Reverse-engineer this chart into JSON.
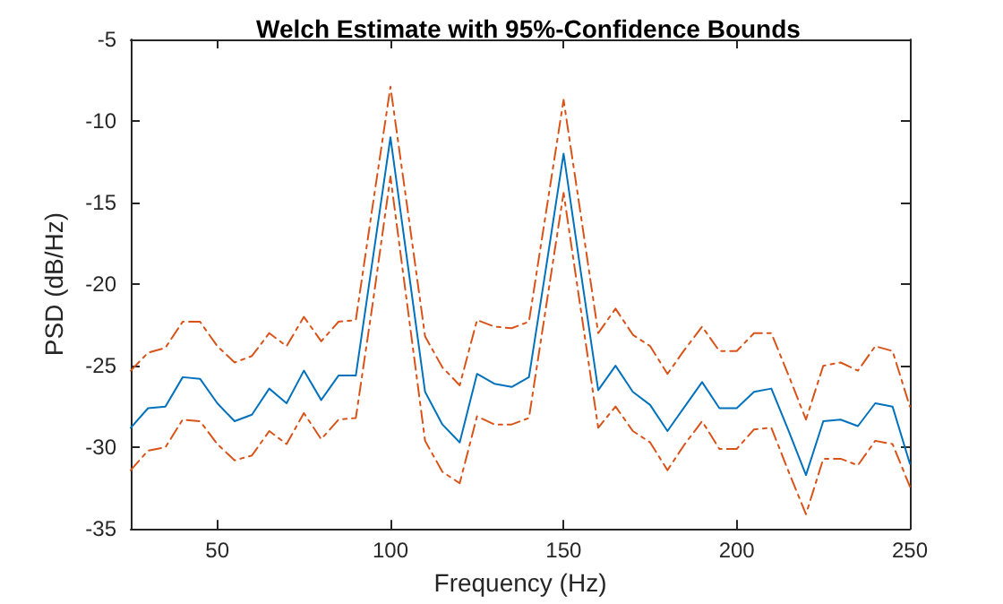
{
  "chart_data": {
    "type": "line",
    "title": "Welch Estimate with 95%-Confidence Bounds",
    "xlabel": "Frequency (Hz)",
    "ylabel": "PSD (dB/Hz)",
    "x": [
      25,
      30,
      35,
      40,
      45,
      50,
      55,
      60,
      65,
      70,
      75,
      80,
      85,
      90,
      95,
      100,
      105,
      110,
      115,
      120,
      125,
      130,
      135,
      140,
      145,
      150,
      155,
      160,
      165,
      170,
      175,
      180,
      185,
      190,
      195,
      200,
      205,
      210,
      215,
      220,
      225,
      230,
      235,
      240,
      245,
      250
    ],
    "series": [
      {
        "color": "#0072bd",
        "line_style": "solid",
        "values": [
          -28.8,
          -27.6,
          -27.5,
          -25.7,
          -25.8,
          -27.3,
          -28.4,
          -28.0,
          -26.4,
          -27.3,
          -25.3,
          -27.1,
          -25.6,
          -25.6,
          -18.3,
          -11.0,
          -18.8,
          -26.6,
          -28.6,
          -29.7,
          -25.5,
          -26.1,
          -26.3,
          -25.7,
          -18.9,
          -12.0,
          -19.3,
          -26.5,
          -25.0,
          -26.6,
          -27.4,
          -29.0,
          -27.5,
          -26.0,
          -27.6,
          -27.6,
          -26.6,
          -26.4,
          -29.0,
          -31.7,
          -28.4,
          -28.3,
          -28.7,
          -27.3,
          -27.5,
          -31.0
        ]
      },
      {
        "color": "#d95319",
        "line_style": "dashed",
        "values": [
          -25.3,
          -24.2,
          -23.9,
          -22.3,
          -22.3,
          -23.8,
          -24.8,
          -24.4,
          -23.0,
          -23.8,
          -22.0,
          -23.5,
          -22.3,
          -22.2,
          -15.0,
          -7.9,
          -15.5,
          -23.2,
          -25.1,
          -26.2,
          -22.2,
          -22.6,
          -22.7,
          -22.3,
          -15.5,
          -8.7,
          -15.8,
          -23.0,
          -21.5,
          -23.1,
          -23.8,
          -25.5,
          -24.0,
          -22.6,
          -24.1,
          -24.1,
          -23.0,
          -23.0,
          -25.6,
          -28.3,
          -25.0,
          -24.8,
          -25.3,
          -23.8,
          -24.1,
          -27.5
        ]
      },
      {
        "color": "#d95319",
        "line_style": "dashed",
        "values": [
          -31.4,
          -30.2,
          -30.0,
          -28.3,
          -28.4,
          -29.8,
          -30.8,
          -30.5,
          -29.0,
          -29.8,
          -27.9,
          -29.5,
          -28.3,
          -28.2,
          -21.0,
          -13.4,
          -21.5,
          -29.6,
          -31.5,
          -32.2,
          -28.1,
          -28.6,
          -28.6,
          -28.2,
          -21.3,
          -14.4,
          -21.6,
          -28.8,
          -27.5,
          -29.0,
          -29.7,
          -31.4,
          -29.8,
          -28.4,
          -30.1,
          -30.1,
          -28.9,
          -28.8,
          -31.5,
          -34.1,
          -30.7,
          -30.7,
          -31.1,
          -29.6,
          -29.8,
          -32.4
        ]
      }
    ],
    "xlim": [
      25,
      250
    ],
    "xticks": [
      50,
      100,
      150,
      200,
      250
    ],
    "ylim": [
      -35,
      -5
    ],
    "yticks": [
      -35,
      -30,
      -25,
      -20,
      -15,
      -10,
      -5
    ],
    "marker": "none"
  }
}
